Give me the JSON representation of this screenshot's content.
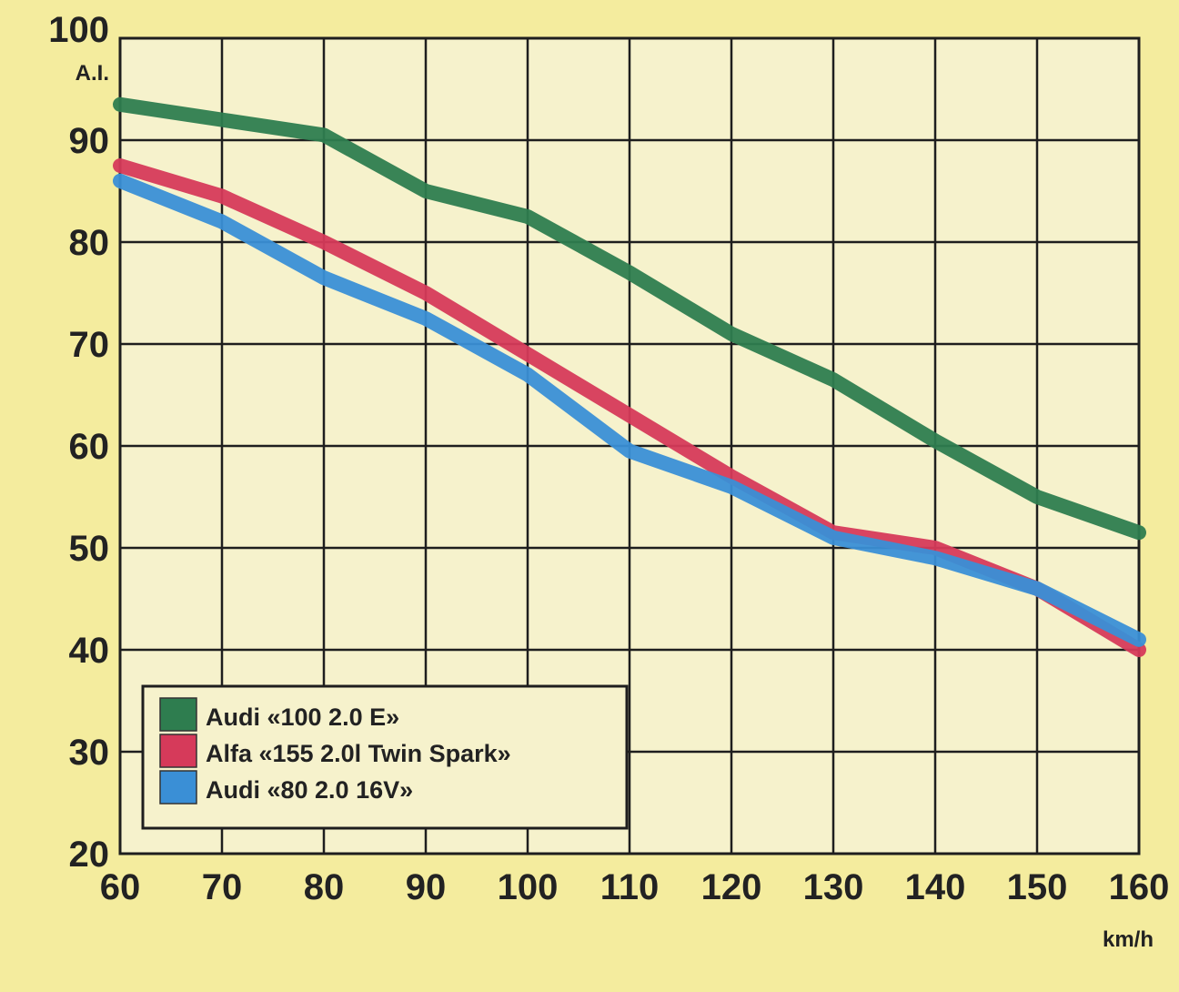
{
  "chart_data": {
    "type": "line",
    "title": "",
    "xlabel": "km/h",
    "ylabel": "A.I.",
    "xlim": [
      60,
      160
    ],
    "ylim": [
      20,
      100
    ],
    "x_ticks": [
      60,
      70,
      80,
      90,
      100,
      110,
      120,
      130,
      140,
      150,
      160
    ],
    "y_ticks": [
      20,
      30,
      40,
      50,
      60,
      70,
      80,
      90,
      100
    ],
    "grid": true,
    "legend_position": "bottom-left",
    "colors": {
      "background": "#f4ec9e",
      "plot_background": "#f6f2cc",
      "grid": "#1e1e1e"
    },
    "x": [
      60,
      70,
      80,
      90,
      100,
      110,
      120,
      130,
      140,
      150,
      160
    ],
    "series": [
      {
        "name": "Audi «100 2.0 E»",
        "color": "#2e7d4f",
        "values": [
          93.5,
          92,
          90.5,
          85,
          82.5,
          77,
          71,
          66.5,
          60.5,
          55,
          51.5
        ]
      },
      {
        "name": "Alfa «155 2.0l Twin Spark»",
        "color": "#d63a5a",
        "values": [
          87.5,
          84.5,
          80,
          75,
          69,
          63,
          57,
          51.5,
          50,
          46,
          40
        ]
      },
      {
        "name": "Audi «80 2.0 16V»",
        "color": "#3a8fd6",
        "values": [
          86,
          82,
          76.5,
          72.5,
          67,
          59.5,
          56,
          51,
          49,
          46,
          41
        ]
      }
    ]
  }
}
